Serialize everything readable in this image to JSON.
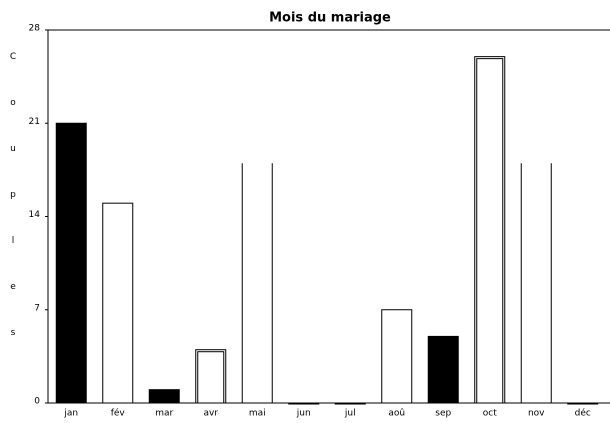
{
  "chart_data": {
    "type": "bar",
    "title": "Mois du mariage",
    "y_label": "Couples",
    "categories": [
      "jan",
      "fév",
      "mar",
      "avr",
      "mai",
      "jun",
      "jul",
      "aoû",
      "sep",
      "oct",
      "nov",
      "déc"
    ],
    "values": [
      21,
      15,
      1,
      4,
      18,
      0,
      0,
      7,
      5,
      26,
      18,
      0
    ],
    "styles": [
      "solid",
      "outline",
      "solid",
      "double",
      "open",
      "outline",
      "outline",
      "outline",
      "solid",
      "double",
      "open",
      "outline"
    ],
    "color": "#000000",
    "ylim": [
      0,
      28
    ],
    "yticks": [
      0,
      7,
      14,
      21,
      28
    ],
    "grid": false
  }
}
